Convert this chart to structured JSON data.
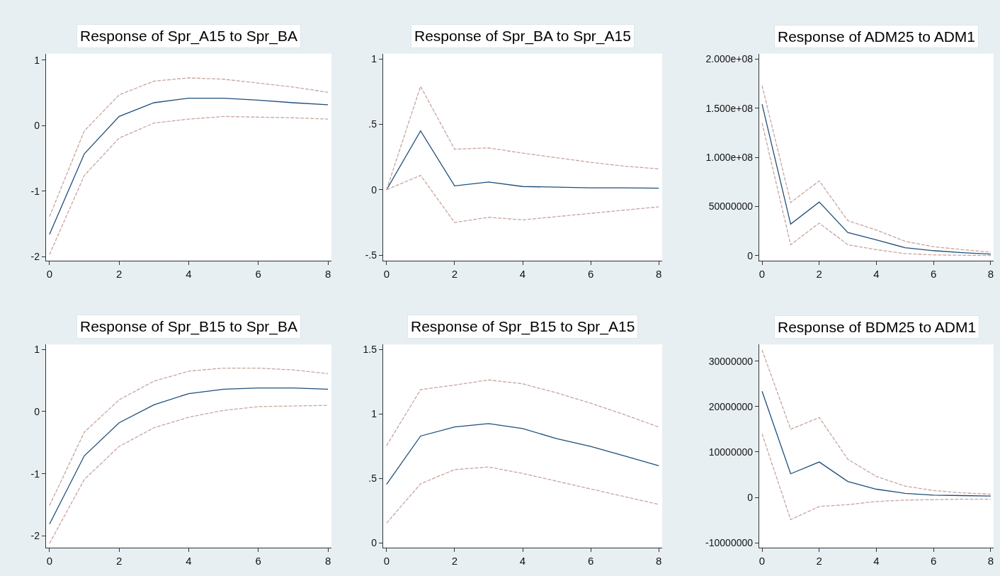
{
  "chart_data": [
    {
      "type": "line",
      "title": "Response of Spr_A15 to Spr_BA",
      "x": [
        0,
        1,
        2,
        3,
        4,
        5,
        6,
        7,
        8
      ],
      "xlim": [
        -0.1,
        8.1
      ],
      "xticks": [
        0,
        2,
        4,
        6,
        8
      ],
      "ylim": [
        -2.06,
        1.1
      ],
      "yticks": [
        -2,
        -1,
        0,
        1
      ],
      "grid": false,
      "marker": "none",
      "series": [
        {
          "color": "#1f4e79",
          "line_style": "solid",
          "values": [
            -1.66,
            -0.43,
            0.14,
            0.35,
            0.42,
            0.42,
            0.39,
            0.35,
            0.32
          ]
        },
        {
          "color": "#c8a49e",
          "line_style": "dashed",
          "values": [
            -1.39,
            -0.08,
            0.47,
            0.68,
            0.73,
            0.71,
            0.65,
            0.59,
            0.51
          ]
        },
        {
          "color": "#c8a49e",
          "line_style": "dashed",
          "values": [
            -1.97,
            -0.76,
            -0.19,
            0.04,
            0.1,
            0.14,
            0.13,
            0.12,
            0.1
          ]
        }
      ]
    },
    {
      "type": "line",
      "title": "Response of Spr_BA to Spr_A15",
      "x": [
        0,
        1,
        2,
        3,
        4,
        5,
        6,
        7,
        8
      ],
      "xlim": [
        -0.1,
        8.1
      ],
      "xticks": [
        0,
        2,
        4,
        6,
        8
      ],
      "ylim": [
        -0.54,
        1.04
      ],
      "yticks": [
        {
          "value": -0.5,
          "label": "-.5"
        },
        0,
        {
          "value": 0.5,
          "label": ".5"
        },
        1
      ],
      "grid": false,
      "marker": "none",
      "series": [
        {
          "color": "#1f4e79",
          "line_style": "solid",
          "values": [
            0,
            0.45,
            0.03,
            0.06,
            0.025,
            0.02,
            0.015,
            0.015,
            0.012
          ]
        },
        {
          "color": "#c8a49e",
          "line_style": "dashed",
          "values": [
            0,
            0.79,
            0.31,
            0.32,
            0.28,
            0.245,
            0.21,
            0.18,
            0.16
          ]
        },
        {
          "color": "#c8a49e",
          "line_style": "dashed",
          "values": [
            0,
            0.11,
            -0.25,
            -0.21,
            -0.23,
            -0.205,
            -0.18,
            -0.155,
            -0.13
          ]
        }
      ]
    },
    {
      "type": "line",
      "title": "Response of ADM25 to ADM1",
      "x": [
        0,
        1,
        2,
        3,
        4,
        5,
        6,
        7,
        8
      ],
      "xlim": [
        -0.1,
        8.1
      ],
      "xticks": [
        0,
        2,
        4,
        6,
        8
      ],
      "ylim": [
        -5000000,
        205500000
      ],
      "yticks": [
        0,
        50000000,
        {
          "value": 100000000,
          "label": "1.000e+08"
        },
        {
          "value": 150000000,
          "label": "1.500e+08"
        },
        {
          "value": 200000000,
          "label": "2.000e+08"
        }
      ],
      "grid": false,
      "marker": "none",
      "series": [
        {
          "color": "#1f4e79",
          "line_style": "solid",
          "values": [
            154000000,
            32000000,
            54500000,
            23500000,
            16000000,
            8000000,
            5000000,
            3000000,
            1500000
          ]
        },
        {
          "color": "#c8a49e",
          "line_style": "dashed",
          "values": [
            173000000,
            54000000,
            76000000,
            35500000,
            26000000,
            14500000,
            9000000,
            6000000,
            3500000
          ]
        },
        {
          "color": "#c8a49e",
          "line_style": "dashed",
          "values": [
            135000000,
            11000000,
            33000000,
            11000000,
            6000000,
            2000000,
            700000,
            300000,
            0
          ]
        }
      ]
    },
    {
      "type": "line",
      "title": "Response of Spr_B15 to Spr_BA",
      "x": [
        0,
        1,
        2,
        3,
        4,
        5,
        6,
        7,
        8
      ],
      "xlim": [
        -0.1,
        8.1
      ],
      "xticks": [
        0,
        2,
        4,
        6,
        8
      ],
      "ylim": [
        -2.19,
        1.08
      ],
      "yticks": [
        -2,
        -1,
        0,
        1
      ],
      "grid": false,
      "marker": "none",
      "series": [
        {
          "color": "#1f4e79",
          "line_style": "solid",
          "values": [
            -1.81,
            -0.71,
            -0.18,
            0.11,
            0.29,
            0.36,
            0.38,
            0.38,
            0.36
          ]
        },
        {
          "color": "#c8a49e",
          "line_style": "dashed",
          "values": [
            -1.51,
            -0.33,
            0.19,
            0.49,
            0.65,
            0.7,
            0.7,
            0.67,
            0.61
          ]
        },
        {
          "color": "#c8a49e",
          "line_style": "dashed",
          "values": [
            -2.12,
            -1.09,
            -0.56,
            -0.26,
            -0.09,
            0.02,
            0.08,
            0.09,
            0.1
          ]
        }
      ]
    },
    {
      "type": "line",
      "title": "Response of Spr_B15 to Spr_A15",
      "x": [
        0,
        1,
        2,
        3,
        4,
        5,
        6,
        7,
        8
      ],
      "xlim": [
        -0.1,
        8.1
      ],
      "xticks": [
        0,
        2,
        4,
        6,
        8
      ],
      "ylim": [
        -0.036,
        1.54
      ],
      "yticks": [
        0,
        {
          "value": 0.5,
          "label": ".5"
        },
        1,
        1.5
      ],
      "grid": false,
      "marker": "none",
      "series": [
        {
          "color": "#1f4e79",
          "line_style": "solid",
          "values": [
            0.455,
            0.83,
            0.9,
            0.927,
            0.888,
            0.81,
            0.75,
            0.675,
            0.6
          ]
        },
        {
          "color": "#c8a49e",
          "line_style": "dashed",
          "values": [
            0.755,
            1.19,
            1.225,
            1.265,
            1.235,
            1.165,
            1.085,
            0.995,
            0.9
          ]
        },
        {
          "color": "#c8a49e",
          "line_style": "dashed",
          "values": [
            0.155,
            0.46,
            0.57,
            0.59,
            0.54,
            0.48,
            0.42,
            0.36,
            0.3
          ]
        }
      ]
    },
    {
      "type": "line",
      "title": "Response of BDM25 to ADM1",
      "x": [
        0,
        1,
        2,
        3,
        4,
        5,
        6,
        7,
        8
      ],
      "xlim": [
        -0.1,
        8.1
      ],
      "xticks": [
        0,
        2,
        4,
        6,
        8
      ],
      "ylim": [
        -11100000,
        33700000
      ],
      "yticks": [
        -10000000,
        0,
        10000000,
        20000000,
        30000000
      ],
      "grid": false,
      "marker": "none",
      "series": [
        {
          "color": "#1f4e79",
          "line_style": "solid",
          "values": [
            23400000,
            5200000,
            7800000,
            3500000,
            1800000,
            900000,
            500000,
            400000,
            300000
          ]
        },
        {
          "color": "#c8a49e",
          "line_style": "dashed",
          "values": [
            32500000,
            15000000,
            17600000,
            8400000,
            4600000,
            2500000,
            1500000,
            1000000,
            700000
          ]
        },
        {
          "color": "#c8a49e",
          "line_style": "dashed",
          "values": [
            14000000,
            -4900000,
            -2000000,
            -1600000,
            -900000,
            -600000,
            -500000,
            -400000,
            -400000
          ]
        }
      ]
    }
  ]
}
